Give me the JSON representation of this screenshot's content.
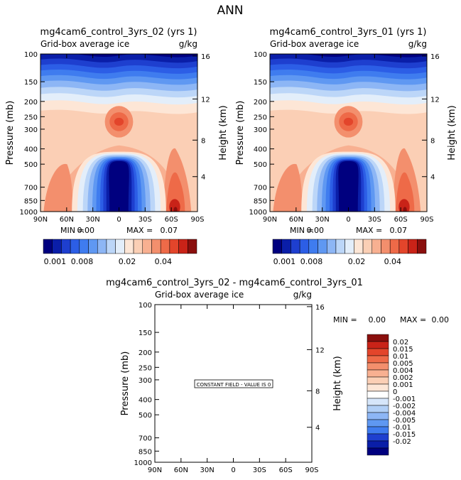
{
  "page": {
    "title": "ANN"
  },
  "colors": [
    "#00007f",
    "#0a1ea8",
    "#1e3fcf",
    "#2c5ee6",
    "#3f7cef",
    "#5f98f2",
    "#8db6f5",
    "#bcd6f8",
    "#e3eefa",
    "#fde6d6",
    "#fbcfb5",
    "#f8b091",
    "#f38f6d",
    "#ee6a48",
    "#e3452b",
    "#c92318",
    "#8a0f0d"
  ],
  "chart_data": [
    {
      "type": "heatmap",
      "panel": "left",
      "title": "mg4cam6_control_3yrs_02 (yrs 1)",
      "subtitle_left": "Grid-box average ice",
      "subtitle_right": "g/kg",
      "ylabel": "Pressure (mb)",
      "y2label": "Height (km)",
      "x_ticks": [
        "90N",
        "60N",
        "30N",
        "0",
        "30S",
        "60S",
        "90S"
      ],
      "y_ticks": [
        100,
        150,
        200,
        250,
        300,
        400,
        500,
        700,
        850,
        1000
      ],
      "y2_ticks": [
        "16",
        "12",
        "8",
        "4"
      ],
      "ylim": [
        100,
        1000
      ],
      "min_label": "MIN =",
      "min_value": "0.00",
      "max_label": "MAX =",
      "max_value": "0.07",
      "colorbar_ticks": [
        "0.001",
        "0.008",
        "0.02",
        "0.04"
      ]
    },
    {
      "type": "heatmap",
      "panel": "right",
      "title": "mg4cam6_control_3yrs_01 (yrs 1)",
      "subtitle_left": "Grid-box average ice",
      "subtitle_right": "g/kg",
      "ylabel": "Pressure (mb)",
      "y2label": "Height (km)",
      "x_ticks": [
        "90N",
        "60N",
        "30N",
        "0",
        "30S",
        "60S",
        "90S"
      ],
      "y_ticks": [
        100,
        150,
        200,
        250,
        300,
        400,
        500,
        700,
        850,
        1000
      ],
      "y2_ticks": [
        "16",
        "12",
        "8",
        "4"
      ],
      "ylim": [
        100,
        1000
      ],
      "min_label": "MIN =",
      "min_value": "0.00",
      "max_label": "MAX =",
      "max_value": "0.07",
      "colorbar_ticks": [
        "0.001",
        "0.008",
        "0.02",
        "0.04"
      ]
    },
    {
      "type": "heatmap",
      "panel": "difference",
      "title": "mg4cam6_control_3yrs_02 - mg4cam6_control_3yrs_01",
      "subtitle_left": "Grid-box average ice",
      "subtitle_right": "g/kg",
      "ylabel": "Pressure (mb)",
      "y2label": "Height (km)",
      "x_ticks": [
        "90N",
        "60N",
        "30N",
        "0",
        "30S",
        "60S",
        "90S"
      ],
      "y_ticks": [
        100,
        150,
        200,
        250,
        300,
        400,
        500,
        700,
        850,
        1000
      ],
      "y2_ticks": [
        "16",
        "12",
        "8",
        "4"
      ],
      "ylim": [
        100,
        1000
      ],
      "min_label": "MIN =",
      "min_value": "0.00",
      "max_label": "MAX =",
      "max_value": "0.00",
      "annotation": "CONSTANT FIELD - VALUE IS 0",
      "colorbar_labels": [
        "0.02",
        "0.015",
        "0.01",
        "0.005",
        "0.004",
        "0.002",
        "0.001",
        "0",
        "-0.001",
        "-0.002",
        "-0.004",
        "-0.005",
        "-0.01",
        "-0.015",
        "-0.02"
      ]
    }
  ]
}
